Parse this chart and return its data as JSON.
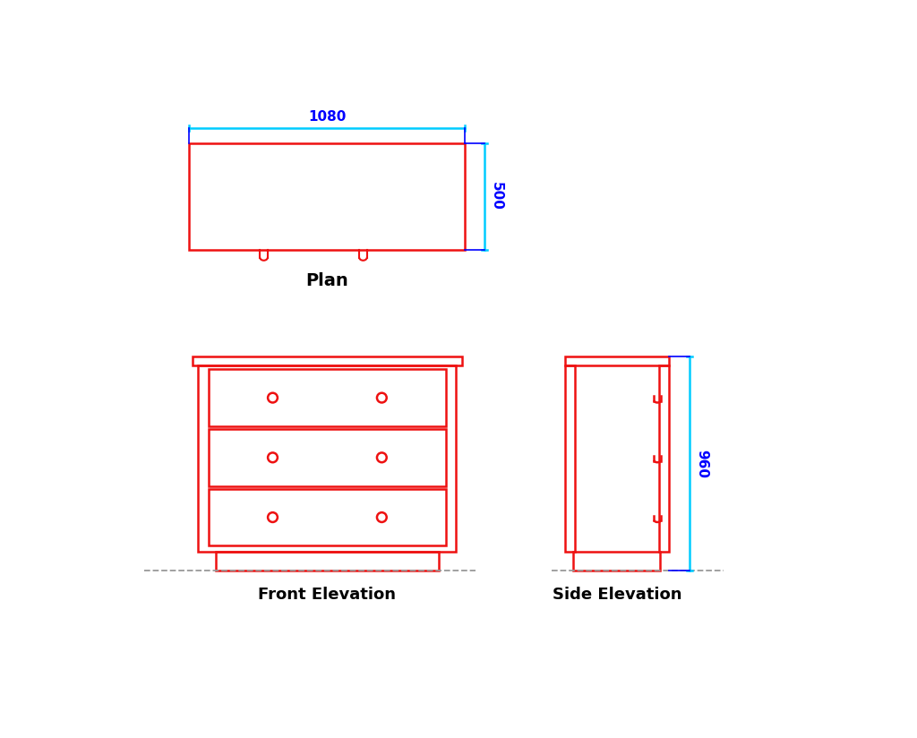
{
  "bg_color": "#ffffff",
  "red": "#ee1111",
  "cyan": "#00ccff",
  "blue": "#0000ff",
  "black": "#000000",
  "gray_dash": "#888888",
  "plan_label": "Plan",
  "fe_label": "Front Elevation",
  "se_label": "Side Elevation",
  "dim_960": "960",
  "dim_1080": "1080",
  "dim_500": "500"
}
